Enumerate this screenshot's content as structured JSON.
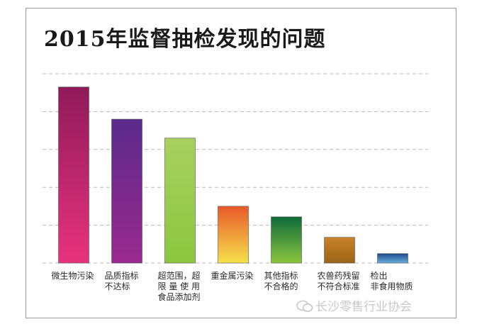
{
  "title": "2015年监督抽检发现的问题",
  "watermark": "长沙零售行业协会",
  "chart_data": {
    "type": "bar",
    "title": "2015年监督抽检发现的问题",
    "xlabel": "",
    "ylabel": "",
    "grid": true,
    "legend": "none",
    "ylim": [
      0,
      5
    ],
    "categories": [
      [
        "微生物污染"
      ],
      [
        "品质指标",
        "不达标"
      ],
      [
        "超范围，超",
        "限 量 使 用",
        "食品添加剂"
      ],
      [
        "重金属污染"
      ],
      [
        "其他指标",
        "不合格的"
      ],
      [
        "农兽药残留",
        "不符合标准"
      ],
      [
        "检出",
        "非食用物质"
      ]
    ],
    "values": [
      4.65,
      3.8,
      3.3,
      1.5,
      1.22,
      0.68,
      0.25
    ],
    "colors": [
      [
        "#8f1a5a",
        "#e8337c"
      ],
      [
        "#5a2a8a",
        "#9a2a8e"
      ],
      [
        "#a8d060",
        "#8cc63f"
      ],
      [
        "#e85a2a",
        "#f5e04a"
      ],
      [
        "#0e6a3a",
        "#8cc63f"
      ],
      [
        "#c8822a",
        "#9a6418"
      ],
      [
        "#1c4a8a",
        "#6ab0e0"
      ]
    ]
  }
}
